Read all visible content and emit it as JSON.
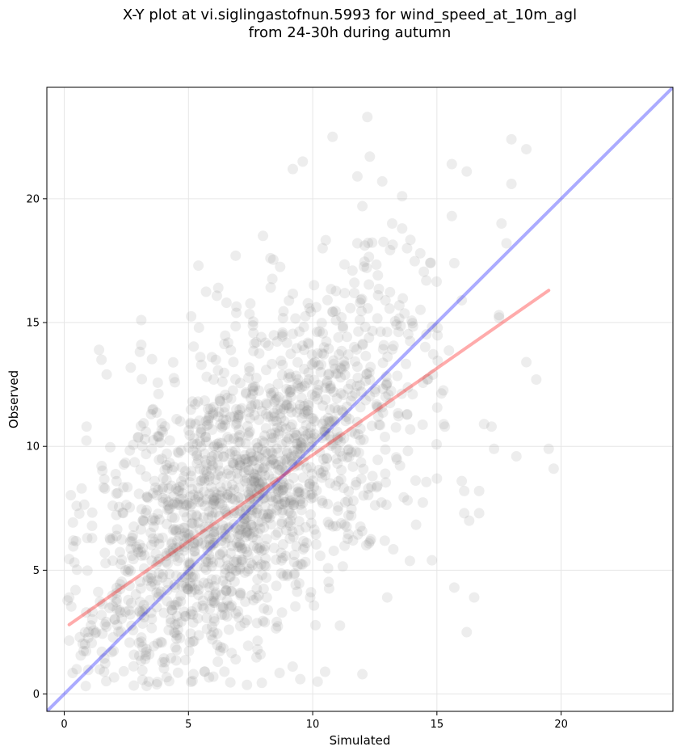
{
  "chart_data": {
    "type": "scatter",
    "title": "X-Y plot at vi.siglingastofnun.5993 for wind_speed_at_10m_agl\nfrom 24-30h during autumn",
    "xlabel": "Simulated",
    "ylabel": "Observed",
    "xlim": [
      -0.7,
      24.5
    ],
    "ylim": [
      -0.7,
      24.5
    ],
    "xticks": [
      0,
      5,
      10,
      15,
      20
    ],
    "yticks": [
      0,
      5,
      10,
      15,
      20
    ],
    "grid": true,
    "point_color": "#808080",
    "identity_line": {
      "color": "#0000ff",
      "from": [
        -0.7,
        -0.7
      ],
      "to": [
        24.5,
        24.5
      ]
    },
    "regression_line": {
      "color": "#ff0000",
      "from": [
        0.2,
        2.8
      ],
      "to": [
        19.5,
        16.3
      ]
    },
    "point_summary": {
      "count": 1800,
      "mean_x": 7.2,
      "mean_y": 8.0,
      "std_x": 3.7,
      "std_y": 4.2,
      "corr": 0.66
    },
    "highlighted_points": [
      [
        12.2,
        23.3
      ],
      [
        10.8,
        22.5
      ],
      [
        12.3,
        21.7
      ],
      [
        18.0,
        22.4
      ],
      [
        18.6,
        22.0
      ],
      [
        9.2,
        21.2
      ],
      [
        9.6,
        21.5
      ],
      [
        11.8,
        20.9
      ],
      [
        12.8,
        20.7
      ],
      [
        16.2,
        21.1
      ],
      [
        15.6,
        21.4
      ],
      [
        18.0,
        20.6
      ],
      [
        13.6,
        20.1
      ],
      [
        12.0,
        19.7
      ],
      [
        13.2,
        19.0
      ],
      [
        15.6,
        19.3
      ],
      [
        17.6,
        19.0
      ],
      [
        17.8,
        18.2
      ],
      [
        13.6,
        18.8
      ],
      [
        10.4,
        18.0
      ],
      [
        11.8,
        18.2
      ],
      [
        8.0,
        18.5
      ],
      [
        13.8,
        18.0
      ],
      [
        6.9,
        17.7
      ],
      [
        5.4,
        17.3
      ],
      [
        8.3,
        17.6
      ],
      [
        15.7,
        17.4
      ],
      [
        11.6,
        17.1
      ],
      [
        17.5,
        15.3
      ],
      [
        17.5,
        15.2
      ],
      [
        16.0,
        15.9
      ],
      [
        18.6,
        13.4
      ],
      [
        16.9,
        10.9
      ],
      [
        17.2,
        10.8
      ],
      [
        17.3,
        9.9
      ],
      [
        18.2,
        9.6
      ],
      [
        19.0,
        12.7
      ],
      [
        19.5,
        9.9
      ],
      [
        19.7,
        9.1
      ],
      [
        16.1,
        8.2
      ],
      [
        16.0,
        8.6
      ],
      [
        15.0,
        8.7
      ],
      [
        16.1,
        7.3
      ],
      [
        16.7,
        7.3
      ],
      [
        16.3,
        7.0
      ],
      [
        16.7,
        8.2
      ],
      [
        16.5,
        3.9
      ],
      [
        16.2,
        2.5
      ],
      [
        15.7,
        4.3
      ],
      [
        14.8,
        5.4
      ],
      [
        10.2,
        0.5
      ],
      [
        9.5,
        0.6
      ],
      [
        10.5,
        0.9
      ],
      [
        12.0,
        0.8
      ],
      [
        13.0,
        3.9
      ],
      [
        9.9,
        3.9
      ],
      [
        7.9,
        1.6
      ],
      [
        6.9,
        1.4
      ],
      [
        6.0,
        0.7
      ],
      [
        5.2,
        0.8
      ],
      [
        3.4,
        0.5
      ],
      [
        0.5,
        1.0
      ],
      [
        0.2,
        3.9
      ],
      [
        0.7,
        8.3
      ],
      [
        0.9,
        10.8
      ],
      [
        1.4,
        13.9
      ],
      [
        1.5,
        13.5
      ],
      [
        3.1,
        15.1
      ],
      [
        3.1,
        14.1
      ],
      [
        6.2,
        16.4
      ]
    ]
  }
}
